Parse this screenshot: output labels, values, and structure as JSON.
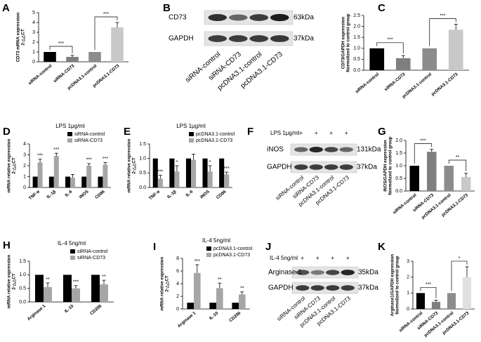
{
  "chart_data": [
    {
      "type": "bar",
      "panel": "A",
      "ylabel": [
        "CD73 mRNA expression",
        "2-△△CT"
      ],
      "categories": [
        "siRNA-control",
        "siRNA-CD73",
        "pcDNA3.1-control",
        "pcDNA3.1-CD73"
      ],
      "values": [
        1,
        0.5,
        1,
        3.5
      ],
      "errors": [
        null,
        0.15,
        null,
        0.5
      ],
      "colors": [
        "#000000",
        "#7f7f7f",
        "#8c8c8c",
        "#c8c8c8"
      ],
      "ylim": [
        0,
        5
      ],
      "yticks": [
        0,
        1,
        2,
        3,
        4,
        5
      ],
      "significance": [
        "***",
        "***"
      ]
    },
    {
      "type": "bar",
      "panel": "C",
      "ylabel": [
        "CD73/GAPDH expression",
        "Normolized to control group"
      ],
      "categories": [
        "siRNA-control",
        "siRNA-CD73",
        "pcDNA3.1-control",
        "pcDNA3.1-CD73"
      ],
      "values": [
        1,
        0.55,
        1,
        1.85
      ],
      "errors": [
        null,
        0.12,
        null,
        0.25
      ],
      "colors": [
        "#000000",
        "#7f7f7f",
        "#8c8c8c",
        "#c8c8c8"
      ],
      "ylim": [
        0,
        2.5
      ],
      "yticks": [
        {
          "value": 0,
          "label": "0.0"
        },
        {
          "value": 0.5,
          "label": "0.5"
        },
        {
          "value": 1,
          "label": "1.0"
        },
        {
          "value": 1.5,
          "label": "1.5"
        },
        {
          "value": 2,
          "label": "2.0"
        },
        {
          "value": 2.5,
          "label": "2.5"
        }
      ],
      "significance": [
        "***",
        "***"
      ]
    },
    {
      "type": "grouped_bar",
      "panel": "D",
      "title": "LPS 1μg/ml",
      "ylabel": [
        "mRNA relative expression",
        "2-△△CT"
      ],
      "categories": [
        "TNF-α",
        "IL-1β",
        "IL-6",
        "iNOS",
        "CD86"
      ],
      "series": [
        {
          "name": "siRNA-control",
          "color": "#000000",
          "values": [
            1,
            1,
            1,
            1,
            1
          ]
        },
        {
          "name": "siRNA-CD73",
          "color": "#a6a6a6",
          "values": [
            2.3,
            2.9,
            0.9,
            2.0,
            2.1
          ],
          "errors": [
            0.3,
            0.25,
            0.3,
            0.2,
            0.2
          ]
        }
      ],
      "ylim": [
        0,
        4
      ],
      "yticks": [
        0,
        1,
        2,
        3,
        4
      ],
      "significance": [
        "***",
        "***",
        null,
        "***",
        "***"
      ],
      "legend": "upper right"
    },
    {
      "type": "grouped_bar",
      "panel": "E",
      "title": "LPS 1μg/ml",
      "ylabel": [
        "mRNA relative expression",
        "2-△△CT"
      ],
      "categories": [
        "TNF-α",
        "IL-1β",
        "IL-6",
        "iNOS",
        "CD86"
      ],
      "series": [
        {
          "name": "pcDNA3.1-control",
          "color": "#000000",
          "values": [
            1,
            1,
            1,
            1,
            1
          ]
        },
        {
          "name": "pcDNA3.1-CD73",
          "color": "#a6a6a6",
          "values": [
            0.3,
            0.55,
            0.95,
            0.55,
            0.45
          ],
          "errors": [
            0.12,
            0.2,
            0.2,
            0.2,
            0.08
          ]
        }
      ],
      "ylim": [
        0,
        1.5
      ],
      "yticks": [
        {
          "value": 0,
          "label": "0.0"
        },
        {
          "value": 0.5,
          "label": "0.5"
        },
        {
          "value": 1,
          "label": "1.0"
        },
        {
          "value": 1.5,
          "label": "1.5"
        }
      ],
      "significance": [
        "***",
        "*",
        null,
        "*",
        "***"
      ],
      "legend": "upper right"
    },
    {
      "type": "bar",
      "panel": "G",
      "ylabel": [
        "iNOS/GAPDH expression",
        "Normolized to control group"
      ],
      "categories": [
        "siRNA-control",
        "siRNA-CD73",
        "pcDNA3.1-control",
        "pcDNA3.1-CD73"
      ],
      "values": [
        1,
        1.55,
        1,
        0.55
      ],
      "errors": [
        null,
        0.1,
        null,
        0.15
      ],
      "colors": [
        "#000000",
        "#7f7f7f",
        "#8c8c8c",
        "#c8c8c8"
      ],
      "ylim": [
        0,
        2
      ],
      "yticks": [
        {
          "value": 0,
          "label": "0.0"
        },
        {
          "value": 0.5,
          "label": "0.5"
        },
        {
          "value": 1,
          "label": "1.0"
        },
        {
          "value": 1.5,
          "label": "1.5"
        },
        {
          "value": 2,
          "label": "2.0"
        }
      ],
      "significance": [
        "***",
        "**"
      ]
    },
    {
      "type": "grouped_bar",
      "panel": "H",
      "title": "IL-4 5ng/ml",
      "ylabel": [
        "mRNA relative expression",
        "2-△△CT"
      ],
      "categories": [
        "Arginase 1",
        "IL-10",
        "CD206"
      ],
      "series": [
        {
          "name": "siRNA-control",
          "color": "#000000",
          "values": [
            1,
            1,
            1
          ]
        },
        {
          "name": "siRNA-CD73",
          "color": "#a6a6a6",
          "values": [
            0.55,
            0.5,
            0.65
          ],
          "errors": [
            0.15,
            0.1,
            0.15
          ]
        }
      ],
      "ylim": [
        0,
        1.5
      ],
      "yticks": [
        {
          "value": 0,
          "label": "0.0"
        },
        {
          "value": 0.5,
          "label": "0.5"
        },
        {
          "value": 1,
          "label": "1.0"
        },
        {
          "value": 1.5,
          "label": "1.5"
        }
      ],
      "significance": [
        "**",
        "***",
        "**"
      ],
      "legend": "upper right"
    },
    {
      "type": "grouped_bar",
      "panel": "I",
      "title": "IL-4 5ng/ml",
      "ylabel": [
        "mRNA relative expression",
        "2-△△CT"
      ],
      "categories": [
        "Arginase 1",
        "IL-10",
        "CD206"
      ],
      "series": [
        {
          "name": "pcDNA3.1-control",
          "color": "#000000",
          "values": [
            1,
            1,
            1
          ]
        },
        {
          "name": "pcDNA3.1-CD73",
          "color": "#a6a6a6",
          "values": [
            5.7,
            3.3,
            2.3
          ],
          "errors": [
            1.3,
            0.8,
            0.4
          ]
        }
      ],
      "ylim": [
        0,
        8
      ],
      "yticks": [
        0,
        2,
        4,
        6,
        8
      ],
      "significance": [
        "***",
        "**",
        "**"
      ],
      "legend": "upper right"
    },
    {
      "type": "bar",
      "panel": "K",
      "ylabel": [
        "Arginase1/GAPDH expression",
        "Normolized to control group"
      ],
      "categories": [
        "siRNA-control",
        "siRNA-CD73",
        "pcDNA3.1-control",
        "pcDNA3.1-CD73"
      ],
      "values": [
        1,
        0.45,
        1,
        2.0
      ],
      "errors": [
        null,
        0.1,
        null,
        0.65
      ],
      "colors": [
        "#000000",
        "#7f7f7f",
        "#8c8c8c",
        "#e0e0e0"
      ],
      "ylim": [
        0,
        3
      ],
      "yticks": [
        0,
        1,
        2,
        3
      ],
      "significance": [
        "***",
        "*"
      ]
    }
  ],
  "blots": [
    {
      "panel": "B",
      "rows": [
        {
          "label": "CD73",
          "size": "63kDa"
        },
        {
          "label": "GAPDH",
          "size": "37kDa"
        }
      ],
      "lanes": [
        "siRNA-control",
        "siRNA-CD73",
        "pcDNA3.1-control",
        "pcDNA3.1-CD73"
      ]
    },
    {
      "panel": "F",
      "treatment": "LPS 1μg/ml",
      "signs": [
        "+",
        "+",
        "+",
        "+"
      ],
      "rows": [
        {
          "label": "iNOS",
          "size": "131kDa"
        },
        {
          "label": "GAPDH",
          "size": "37kDa"
        }
      ],
      "lanes": [
        "siRNA-control",
        "siRNA-CD73",
        "pcDNA3.1-control",
        "pcDNA3.1-CD73"
      ]
    },
    {
      "panel": "J",
      "treatment": "IL-4 5ng/ml",
      "signs": [
        "+",
        "+",
        "+",
        "+"
      ],
      "rows": [
        {
          "label": "Arginase 1",
          "size": "35kDa"
        },
        {
          "label": "GAPDH",
          "size": "37kDa"
        }
      ],
      "lanes": [
        "siRNA-control",
        "siRNA-CD73",
        "pcDNA3.1-control",
        "pcDNA3.1-CD73"
      ]
    }
  ]
}
